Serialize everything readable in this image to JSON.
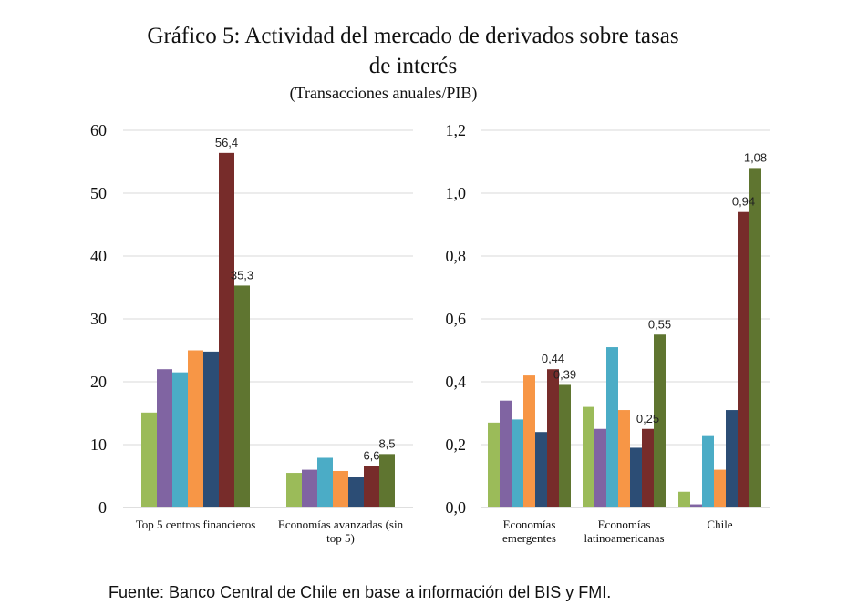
{
  "title_line1": "Gráfico 5: Actividad del mercado de derivados sobre tasas",
  "title_line2": "de interés",
  "subtitle": "(Transacciones anuales/PIB)",
  "source": "Fuente: Banco Central de Chile en base a información del BIS y FMI.",
  "colors": [
    "#9bbb59",
    "#8064a2",
    "#4bacc6",
    "#f79646",
    "#2c4d75",
    "#772c2a",
    "#5f7530"
  ],
  "chart_data": [
    {
      "type": "bar",
      "categories": [
        [
          "Top 5 centros financieros"
        ],
        [
          "Economías avanzadas (sin",
          "top 5)"
        ]
      ],
      "series": [
        {
          "values": [
            15.1,
            5.5
          ]
        },
        {
          "values": [
            22.0,
            6.0
          ]
        },
        {
          "values": [
            21.5,
            7.9
          ]
        },
        {
          "values": [
            25.0,
            5.8
          ]
        },
        {
          "values": [
            24.8,
            4.9
          ]
        },
        {
          "values": [
            56.4,
            6.6
          ]
        },
        {
          "values": [
            35.3,
            8.5
          ]
        }
      ],
      "data_labels": [
        {
          "series": 5,
          "category": 0,
          "text": "56,4"
        },
        {
          "series": 6,
          "category": 0,
          "text": "35,3"
        },
        {
          "series": 5,
          "category": 1,
          "text": "6,6"
        },
        {
          "series": 6,
          "category": 1,
          "text": "8,5"
        }
      ],
      "ylim": [
        0,
        60
      ],
      "yticks": [
        "0",
        "10",
        "20",
        "30",
        "40",
        "50",
        "60"
      ],
      "grid": true
    },
    {
      "type": "bar",
      "categories": [
        [
          "Economías",
          "emergentes"
        ],
        [
          "Economías",
          "latinoamericanas"
        ],
        [
          "Chile"
        ]
      ],
      "series": [
        {
          "values": [
            0.27,
            0.32,
            0.05
          ]
        },
        {
          "values": [
            0.34,
            0.25,
            0.01
          ]
        },
        {
          "values": [
            0.28,
            0.51,
            0.23
          ]
        },
        {
          "values": [
            0.42,
            0.31,
            0.12
          ]
        },
        {
          "values": [
            0.24,
            0.19,
            0.31
          ]
        },
        {
          "values": [
            0.44,
            0.25,
            0.94
          ]
        },
        {
          "values": [
            0.39,
            0.55,
            1.08
          ]
        }
      ],
      "data_labels": [
        {
          "series": 5,
          "category": 0,
          "text": "0,44"
        },
        {
          "series": 6,
          "category": 0,
          "text": "0,39"
        },
        {
          "series": 5,
          "category": 1,
          "text": "0,25"
        },
        {
          "series": 6,
          "category": 1,
          "text": "0,55"
        },
        {
          "series": 5,
          "category": 2,
          "text": "0,94"
        },
        {
          "series": 6,
          "category": 2,
          "text": "1,08"
        }
      ],
      "ylim": [
        0,
        1.2
      ],
      "yticks": [
        "0,0",
        "0,2",
        "0,4",
        "0,6",
        "0,8",
        "1,0",
        "1,2"
      ],
      "grid": true
    }
  ]
}
